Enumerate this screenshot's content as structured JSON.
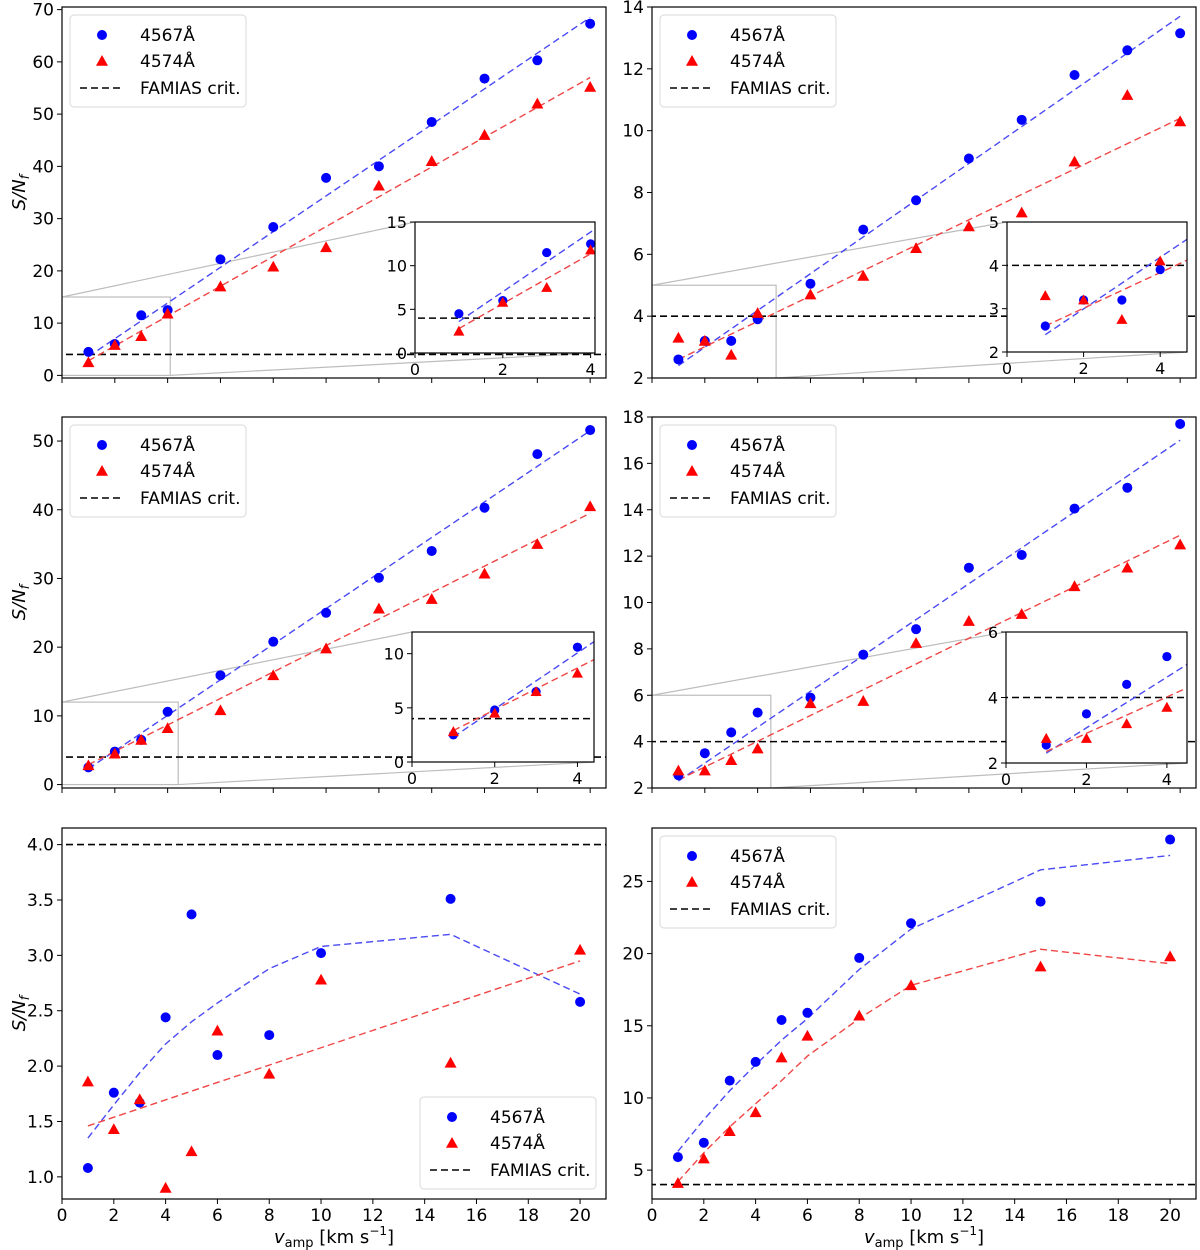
{
  "chart_data": [
    {
      "type": "scatter",
      "ylabel": "S/N",
      "ylabel_sub": "f",
      "xlabel": "",
      "xlim": [
        0,
        20.6
      ],
      "ylim": [
        -0.5,
        70.5
      ],
      "xticks": [
        0,
        2,
        4,
        6,
        8,
        10,
        12,
        14,
        16,
        18,
        20
      ],
      "xtick_labels": [
        "",
        "",
        "",
        "",
        "",
        "",
        "",
        "",
        "",
        "",
        ""
      ],
      "yticks": [
        0,
        10,
        20,
        30,
        40,
        50,
        60,
        70
      ],
      "ytick_labels": [
        "0",
        "10",
        "20",
        "30",
        "40",
        "50",
        "60",
        "70"
      ],
      "hline": 4,
      "legend": {
        "position": "top-left",
        "entries": [
          "4567Å",
          "4574Å",
          "FAMIAS crit."
        ]
      },
      "series": [
        {
          "name": "4567Å",
          "marker": "circle",
          "color": "#0000ff",
          "x": [
            1,
            2,
            3,
            4,
            6,
            8,
            10,
            12,
            14,
            16,
            18,
            20
          ],
          "y": [
            4.5,
            6.0,
            11.5,
            12.5,
            22.2,
            28.4,
            37.8,
            40.0,
            48.5,
            56.8,
            60.3,
            67.3
          ],
          "fit_x": [
            1,
            20
          ],
          "fit_y": [
            3.6,
            68.5
          ]
        },
        {
          "name": "4574Å",
          "marker": "triangle",
          "color": "#ff0000",
          "x": [
            1,
            2,
            3,
            4,
            6,
            8,
            10,
            12,
            14,
            16,
            18,
            20
          ],
          "y": [
            2.5,
            5.8,
            7.5,
            11.8,
            17.0,
            20.8,
            24.5,
            36.3,
            41.0,
            46.0,
            52.0,
            55.2
          ],
          "fit_x": [
            1,
            20
          ],
          "fit_y": [
            2.8,
            57.0
          ]
        }
      ],
      "inset": {
        "xlim": [
          0,
          4.1
        ],
        "ylim": [
          0,
          15
        ],
        "xticks": [
          0,
          2,
          4
        ],
        "xtick_labels": [
          "0",
          "2",
          "4"
        ],
        "yticks": [
          0,
          5,
          10,
          15
        ],
        "ytick_labels": [
          "0",
          "5",
          "10",
          "15"
        ],
        "zoom_xlim": [
          0,
          4.1
        ],
        "zoom_ylim": [
          0,
          15
        ]
      }
    },
    {
      "type": "scatter",
      "ylabel": "",
      "xlabel": "",
      "xlim": [
        0,
        20.6
      ],
      "ylim": [
        2,
        14
      ],
      "xticks": [
        0,
        2,
        4,
        6,
        8,
        10,
        12,
        14,
        16,
        18,
        20
      ],
      "xtick_labels": [
        "",
        "",
        "",
        "",
        "",
        "",
        "",
        "",
        "",
        "",
        ""
      ],
      "yticks": [
        2,
        4,
        6,
        8,
        10,
        12,
        14
      ],
      "ytick_labels": [
        "2",
        "4",
        "6",
        "8",
        "10",
        "12",
        "14"
      ],
      "hline": 4,
      "legend": {
        "position": "top-left",
        "entries": [
          "4567Å",
          "4574Å",
          "FAMIAS crit."
        ]
      },
      "series": [
        {
          "name": "4567Å",
          "marker": "circle",
          "color": "#0000ff",
          "x": [
            1,
            2,
            3,
            4,
            6,
            8,
            10,
            12,
            14,
            16,
            18,
            20
          ],
          "y": [
            2.6,
            3.2,
            3.2,
            3.9,
            5.05,
            6.8,
            7.75,
            9.1,
            10.35,
            11.8,
            12.6,
            13.15
          ],
          "fit_x": [
            1,
            20
          ],
          "fit_y": [
            2.4,
            13.7
          ]
        },
        {
          "name": "4574Å",
          "marker": "triangle",
          "color": "#ff0000",
          "x": [
            1,
            2,
            3,
            4,
            6,
            8,
            10,
            12,
            14,
            16,
            18,
            20
          ],
          "y": [
            3.3,
            3.2,
            2.75,
            4.1,
            4.7,
            5.3,
            6.2,
            6.9,
            7.35,
            9.0,
            11.15,
            10.3
          ],
          "fit_x": [
            1,
            20
          ],
          "fit_y": [
            2.6,
            10.4
          ]
        }
      ],
      "inset": {
        "xlim": [
          0,
          4.7
        ],
        "ylim": [
          2,
          5
        ],
        "xticks": [
          0,
          2,
          4
        ],
        "xtick_labels": [
          "0",
          "2",
          "4"
        ],
        "yticks": [
          2,
          3,
          4,
          5
        ],
        "ytick_labels": [
          "2",
          "3",
          "4",
          "5"
        ],
        "zoom_xlim": [
          0,
          4.7
        ],
        "zoom_ylim": [
          2,
          5
        ]
      }
    },
    {
      "type": "scatter",
      "ylabel": "S/N",
      "ylabel_sub": "f",
      "xlabel": "",
      "xlim": [
        0,
        20.6
      ],
      "ylim": [
        -0.5,
        53.5
      ],
      "xticks": [
        0,
        2,
        4,
        6,
        8,
        10,
        12,
        14,
        16,
        18,
        20
      ],
      "xtick_labels": [
        "",
        "",
        "",
        "",
        "",
        "",
        "",
        "",
        "",
        "",
        ""
      ],
      "yticks": [
        0,
        10,
        20,
        30,
        40,
        50
      ],
      "ytick_labels": [
        "0",
        "10",
        "20",
        "30",
        "40",
        "50"
      ],
      "hline": 4,
      "legend": {
        "position": "top-left",
        "entries": [
          "4567Å",
          "4574Å",
          "FAMIAS crit."
        ]
      },
      "series": [
        {
          "name": "4567Å",
          "marker": "circle",
          "color": "#0000ff",
          "x": [
            1,
            2,
            3,
            4,
            6,
            8,
            10,
            12,
            14,
            16,
            18,
            20
          ],
          "y": [
            2.5,
            4.8,
            6.5,
            10.6,
            15.9,
            20.8,
            25.0,
            30.1,
            34.0,
            40.3,
            48.1,
            51.6
          ],
          "fit_x": [
            1,
            20
          ],
          "fit_y": [
            2.3,
            51.5
          ]
        },
        {
          "name": "4574Å",
          "marker": "triangle",
          "color": "#ff0000",
          "x": [
            1,
            2,
            3,
            4,
            6,
            8,
            10,
            12,
            14,
            16,
            18,
            20
          ],
          "y": [
            2.8,
            4.5,
            6.5,
            8.2,
            10.8,
            15.9,
            19.8,
            25.6,
            27.0,
            30.7,
            35.0,
            40.5
          ],
          "fit_x": [
            1,
            20
          ],
          "fit_y": [
            2.9,
            39.5
          ]
        }
      ],
      "inset": {
        "xlim": [
          0,
          4.4
        ],
        "ylim": [
          0,
          12
        ],
        "xticks": [
          0,
          2,
          4
        ],
        "xtick_labels": [
          "0",
          "2",
          "4"
        ],
        "yticks": [
          0,
          5,
          10
        ],
        "ytick_labels": [
          "0",
          "5",
          "10"
        ],
        "zoom_xlim": [
          0,
          4.4
        ],
        "zoom_ylim": [
          0,
          12
        ]
      }
    },
    {
      "type": "scatter",
      "ylabel": "",
      "xlabel": "",
      "xlim": [
        0,
        20.6
      ],
      "ylim": [
        2,
        18
      ],
      "xticks": [
        0,
        2,
        4,
        6,
        8,
        10,
        12,
        14,
        16,
        18,
        20
      ],
      "xtick_labels": [
        "",
        "",
        "",
        "",
        "",
        "",
        "",
        "",
        "",
        "",
        ""
      ],
      "yticks": [
        2,
        4,
        6,
        8,
        10,
        12,
        14,
        16,
        18
      ],
      "ytick_labels": [
        "2",
        "4",
        "6",
        "8",
        "10",
        "12",
        "14",
        "16",
        "18"
      ],
      "hline": 4,
      "legend": {
        "position": "top-left",
        "entries": [
          "4567Å",
          "4574Å",
          "FAMIAS crit."
        ]
      },
      "series": [
        {
          "name": "4567Å",
          "marker": "circle",
          "color": "#0000ff",
          "x": [
            1,
            2,
            3,
            4,
            6,
            8,
            10,
            12,
            14,
            16,
            18,
            20
          ],
          "y": [
            2.55,
            3.5,
            4.4,
            5.25,
            5.9,
            7.75,
            8.85,
            11.5,
            12.05,
            14.05,
            14.95,
            17.7
          ],
          "fit_x": [
            1,
            20
          ],
          "fit_y": [
            2.3,
            17.0
          ]
        },
        {
          "name": "4574Å",
          "marker": "triangle",
          "color": "#ff0000",
          "x": [
            1,
            2,
            3,
            4,
            6,
            8,
            10,
            12,
            14,
            16,
            18,
            20
          ],
          "y": [
            2.75,
            2.75,
            3.2,
            3.7,
            5.65,
            5.75,
            8.25,
            9.2,
            9.5,
            10.7,
            11.5,
            12.5
          ],
          "fit_x": [
            1,
            20
          ],
          "fit_y": [
            2.35,
            12.9
          ]
        }
      ],
      "inset": {
        "xlim": [
          0,
          4.5
        ],
        "ylim": [
          2,
          6
        ],
        "xticks": [
          0,
          2,
          4
        ],
        "xtick_labels": [
          "0",
          "2",
          "4"
        ],
        "yticks": [
          2,
          4,
          6
        ],
        "ytick_labels": [
          "2",
          "4",
          "6"
        ],
        "zoom_xlim": [
          0,
          4.5
        ],
        "zoom_ylim": [
          2,
          6
        ]
      }
    },
    {
      "type": "scatter",
      "ylabel": "S/N",
      "ylabel_sub": "f",
      "xlabel": "v",
      "xlabel_sub": "amp",
      "xlabel_units": " [km s",
      "xlabel_sup": "−1",
      "xlabel_end": "]",
      "xlim": [
        0,
        21
      ],
      "ylim": [
        0.8,
        4.15
      ],
      "xticks": [
        0,
        2,
        4,
        6,
        8,
        10,
        12,
        14,
        16,
        18,
        20
      ],
      "xtick_labels": [
        "0",
        "2",
        "4",
        "6",
        "8",
        "10",
        "12",
        "14",
        "16",
        "18",
        "20"
      ],
      "yticks": [
        1.0,
        1.5,
        2.0,
        2.5,
        3.0,
        3.5,
        4.0
      ],
      "ytick_labels": [
        "1.0",
        "1.5",
        "2.0",
        "2.5",
        "3.0",
        "3.5",
        "4.0"
      ],
      "hline": 4,
      "legend": {
        "position": "bottom-right",
        "entries": [
          "4567Å",
          "4574Å",
          "FAMIAS crit."
        ]
      },
      "series": [
        {
          "name": "4567Å",
          "marker": "circle",
          "color": "#0000ff",
          "x": [
            1,
            2,
            3,
            4,
            5,
            6,
            8,
            10,
            15,
            20
          ],
          "y": [
            1.08,
            1.76,
            1.67,
            2.44,
            3.37,
            2.1,
            2.28,
            3.02,
            3.51,
            2.58
          ],
          "fit_x": [
            1,
            2,
            3,
            4,
            5,
            6,
            8,
            10,
            15,
            20
          ],
          "fit_y": [
            1.35,
            1.65,
            1.94,
            2.2,
            2.4,
            2.57,
            2.88,
            3.08,
            3.19,
            2.65
          ]
        },
        {
          "name": "4574Å",
          "marker": "triangle",
          "color": "#ff0000",
          "x": [
            1,
            2,
            3,
            4,
            5,
            6,
            8,
            10,
            15,
            20
          ],
          "y": [
            1.86,
            1.43,
            1.7,
            0.9,
            1.23,
            2.32,
            1.93,
            2.78,
            2.03,
            3.05
          ],
          "fit_x": [
            1,
            20
          ],
          "fit_y": [
            1.46,
            2.95
          ]
        }
      ]
    },
    {
      "type": "scatter",
      "ylabel": "",
      "xlabel": "v",
      "xlabel_sub": "amp",
      "xlabel_units": " [km s",
      "xlabel_sup": "−1",
      "xlabel_end": "]",
      "xlim": [
        0,
        21
      ],
      "ylim": [
        3,
        28.7
      ],
      "xticks": [
        0,
        2,
        4,
        6,
        8,
        10,
        12,
        14,
        16,
        18,
        20
      ],
      "xtick_labels": [
        "0",
        "2",
        "4",
        "6",
        "8",
        "10",
        "12",
        "14",
        "16",
        "18",
        "20"
      ],
      "yticks": [
        5,
        10,
        15,
        20,
        25
      ],
      "ytick_labels": [
        "5",
        "10",
        "15",
        "20",
        "25"
      ],
      "hline": 4,
      "legend": {
        "position": "top-left",
        "entries": [
          "4567Å",
          "4574Å",
          "FAMIAS crit."
        ]
      },
      "series": [
        {
          "name": "4567Å",
          "marker": "circle",
          "color": "#0000ff",
          "x": [
            1,
            2,
            3,
            4,
            5,
            6,
            8,
            10,
            15,
            20
          ],
          "y": [
            5.9,
            6.9,
            11.2,
            12.5,
            15.4,
            15.9,
            19.7,
            22.1,
            23.6,
            27.9
          ],
          "fit_x": [
            1,
            2,
            3,
            4,
            5,
            6,
            8,
            10,
            15,
            20
          ],
          "fit_y": [
            6.3,
            8.5,
            10.5,
            12.3,
            14.0,
            15.5,
            18.9,
            21.7,
            25.8,
            26.8
          ]
        },
        {
          "name": "4574Å",
          "marker": "triangle",
          "color": "#ff0000",
          "x": [
            1,
            2,
            3,
            4,
            5,
            6,
            8,
            10,
            15,
            20
          ],
          "y": [
            4.1,
            5.8,
            7.7,
            9.0,
            12.8,
            14.3,
            15.7,
            17.8,
            19.1,
            19.8
          ],
          "fit_x": [
            1,
            2,
            3,
            4,
            5,
            6,
            8,
            10,
            15,
            20
          ],
          "fit_y": [
            4.2,
            6.2,
            8.0,
            9.6,
            11.2,
            12.9,
            15.5,
            17.8,
            20.3,
            19.3
          ]
        }
      ]
    }
  ]
}
